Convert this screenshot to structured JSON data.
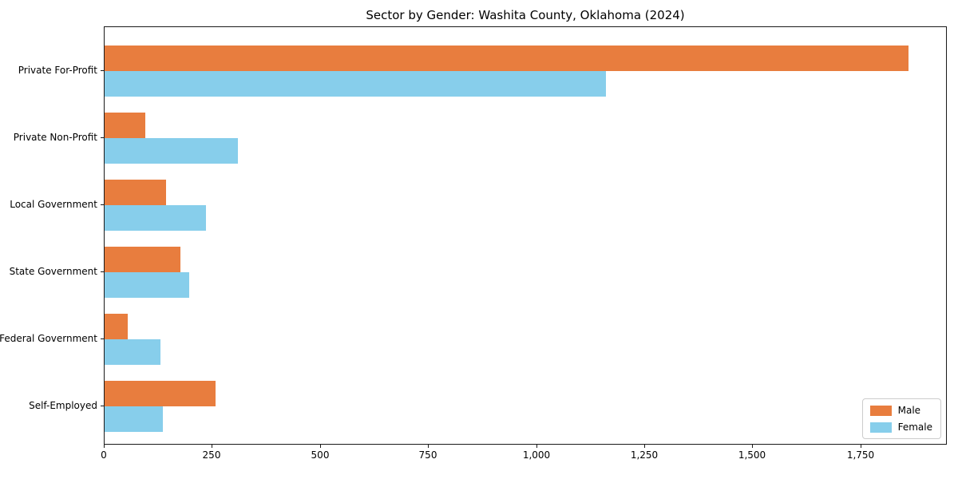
{
  "chart_data": {
    "type": "bar",
    "orientation": "horizontal",
    "title": "Sector by Gender: Washita County, Oklahoma (2024)",
    "categories": [
      "Private For-Profit",
      "Private Non-Profit",
      "Local Government",
      "State Government",
      "Federal Government",
      "Self-Employed"
    ],
    "series": [
      {
        "name": "Male",
        "color": "#e87d3e",
        "values": [
          1860,
          94,
          143,
          175,
          53,
          256
        ]
      },
      {
        "name": "Female",
        "color": "#87ceeb",
        "values": [
          1160,
          308,
          234,
          196,
          129,
          134
        ]
      }
    ],
    "xlabel": "",
    "ylabel": "",
    "xlim": [
      0,
      1950
    ],
    "x_ticks": {
      "values": [
        0,
        250,
        500,
        750,
        1000,
        1250,
        1500,
        1750
      ],
      "labels": [
        "0",
        "250",
        "500",
        "750",
        "1,000",
        "1,250",
        "1,500",
        "1,750"
      ]
    },
    "grid": false,
    "legend_position": "lower right",
    "background_color": "#ffffff",
    "spine_color": "#1a1a1a"
  }
}
